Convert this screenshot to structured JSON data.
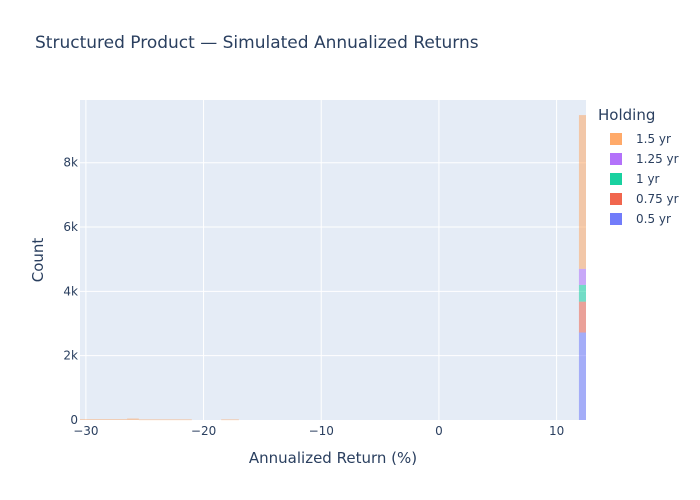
{
  "chart_data": {
    "type": "bar",
    "title": "Structured Product — Simulated Annualized Returns",
    "xlabel": "Annualized Return (%)",
    "ylabel": "Count",
    "xlim": [
      -30.5,
      12.5
    ],
    "ylim": [
      0,
      9950
    ],
    "x_ticks": [
      {
        "value": -30,
        "label": "−30"
      },
      {
        "value": -20,
        "label": "−20"
      },
      {
        "value": -10,
        "label": "−10"
      },
      {
        "value": 0,
        "label": "0"
      },
      {
        "value": 10,
        "label": "10"
      }
    ],
    "y_ticks": [
      {
        "value": 0,
        "label": "0"
      },
      {
        "value": 2000,
        "label": "2k"
      },
      {
        "value": 4000,
        "label": "4k"
      },
      {
        "value": 6000,
        "label": "6k"
      },
      {
        "value": 8000,
        "label": "8k"
      }
    ],
    "barmode": "stack",
    "grid": true,
    "legend": {
      "title": "Holding",
      "placement": "right"
    },
    "series": [
      {
        "name": "0.5 yr",
        "color": "#636efa",
        "values": [
          {
            "x0": 11.9,
            "x1": 12.6,
            "count": 2720
          }
        ]
      },
      {
        "name": "0.75 yr",
        "color": "#ef553b",
        "values": [
          {
            "x0": 11.9,
            "x1": 12.6,
            "count": 960
          }
        ]
      },
      {
        "name": "1 yr",
        "color": "#00cc96",
        "values": [
          {
            "x0": 11.9,
            "x1": 12.6,
            "count": 520
          }
        ]
      },
      {
        "name": "1.25 yr",
        "color": "#ab63fa",
        "values": [
          {
            "x0": 11.9,
            "x1": 12.6,
            "count": 500
          }
        ]
      },
      {
        "name": "1.5 yr",
        "color": "#ffa15a",
        "values": [
          {
            "x0": 11.9,
            "x1": 12.6,
            "count": 4780
          },
          {
            "x0": -30.5,
            "x1": -26.5,
            "count": 25
          },
          {
            "x0": -26.5,
            "x1": -25.5,
            "count": 45
          },
          {
            "x0": -25.5,
            "x1": -21.0,
            "count": 20
          },
          {
            "x0": -18.5,
            "x1": -17.0,
            "count": 20
          }
        ]
      }
    ]
  }
}
